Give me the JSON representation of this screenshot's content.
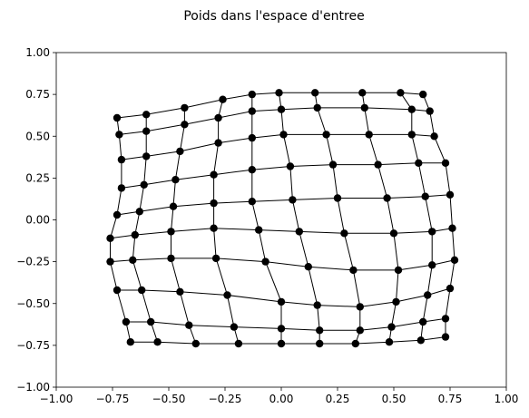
{
  "chart_data": {
    "type": "line",
    "title": "Poids dans l'espace d'entree",
    "xlabel": "",
    "ylabel": "",
    "xlim": [
      -1.0,
      1.0
    ],
    "ylim": [
      -1.0,
      1.0
    ],
    "x_ticks": [
      "−1.00",
      "−0.75",
      "−0.50",
      "−0.25",
      "0.00",
      "0.25",
      "0.50",
      "0.75",
      "1.00"
    ],
    "y_ticks": [
      "1.00",
      "0.75",
      "0.50",
      "0.25",
      "0.00",
      "−0.25",
      "−0.50",
      "−0.75",
      "−1.00"
    ],
    "grid": false,
    "colors": {
      "marker": "#000000",
      "line": "#000000",
      "background": "#ffffff"
    },
    "grid_rows": 10,
    "grid_cols": 10,
    "nodes": [
      [
        [
          -0.73,
          0.61
        ],
        [
          -0.6,
          0.63
        ],
        [
          -0.43,
          0.67
        ],
        [
          -0.26,
          0.72
        ],
        [
          -0.13,
          0.75
        ],
        [
          -0.01,
          0.76
        ],
        [
          0.15,
          0.76
        ],
        [
          0.36,
          0.76
        ],
        [
          0.53,
          0.76
        ],
        [
          0.63,
          0.75
        ]
      ],
      [
        [
          -0.72,
          0.51
        ],
        [
          -0.6,
          0.53
        ],
        [
          -0.43,
          0.57
        ],
        [
          -0.28,
          0.61
        ],
        [
          -0.13,
          0.65
        ],
        [
          0.0,
          0.66
        ],
        [
          0.16,
          0.67
        ],
        [
          0.37,
          0.67
        ],
        [
          0.58,
          0.66
        ],
        [
          0.66,
          0.65
        ]
      ],
      [
        [
          -0.71,
          0.36
        ],
        [
          -0.6,
          0.38
        ],
        [
          -0.45,
          0.41
        ],
        [
          -0.28,
          0.46
        ],
        [
          -0.13,
          0.49
        ],
        [
          0.01,
          0.51
        ],
        [
          0.2,
          0.51
        ],
        [
          0.39,
          0.51
        ],
        [
          0.58,
          0.51
        ],
        [
          0.68,
          0.5
        ]
      ],
      [
        [
          -0.71,
          0.19
        ],
        [
          -0.61,
          0.21
        ],
        [
          -0.47,
          0.24
        ],
        [
          -0.3,
          0.27
        ],
        [
          -0.13,
          0.3
        ],
        [
          0.04,
          0.32
        ],
        [
          0.23,
          0.33
        ],
        [
          0.43,
          0.33
        ],
        [
          0.61,
          0.34
        ],
        [
          0.73,
          0.34
        ]
      ],
      [
        [
          -0.73,
          0.03
        ],
        [
          -0.63,
          0.05
        ],
        [
          -0.48,
          0.08
        ],
        [
          -0.3,
          0.1
        ],
        [
          -0.13,
          0.11
        ],
        [
          0.05,
          0.12
        ],
        [
          0.25,
          0.13
        ],
        [
          0.47,
          0.13
        ],
        [
          0.64,
          0.14
        ],
        [
          0.75,
          0.15
        ]
      ],
      [
        [
          -0.76,
          -0.11
        ],
        [
          -0.65,
          -0.09
        ],
        [
          -0.49,
          -0.07
        ],
        [
          -0.3,
          -0.05
        ],
        [
          -0.1,
          -0.06
        ],
        [
          0.08,
          -0.07
        ],
        [
          0.28,
          -0.08
        ],
        [
          0.5,
          -0.08
        ],
        [
          0.67,
          -0.07
        ],
        [
          0.76,
          -0.05
        ]
      ],
      [
        [
          -0.76,
          -0.25
        ],
        [
          -0.66,
          -0.24
        ],
        [
          -0.49,
          -0.23
        ],
        [
          -0.29,
          -0.23
        ],
        [
          -0.07,
          -0.25
        ],
        [
          0.12,
          -0.28
        ],
        [
          0.32,
          -0.3
        ],
        [
          0.52,
          -0.3
        ],
        [
          0.67,
          -0.27
        ],
        [
          0.77,
          -0.24
        ]
      ],
      [
        [
          -0.73,
          -0.42
        ],
        [
          -0.62,
          -0.42
        ],
        [
          -0.45,
          -0.43
        ],
        [
          -0.24,
          -0.45
        ],
        [
          0.0,
          -0.49
        ],
        [
          0.16,
          -0.51
        ],
        [
          0.35,
          -0.52
        ],
        [
          0.51,
          -0.49
        ],
        [
          0.65,
          -0.45
        ],
        [
          0.75,
          -0.41
        ]
      ],
      [
        [
          -0.69,
          -0.61
        ],
        [
          -0.58,
          -0.61
        ],
        [
          -0.41,
          -0.63
        ],
        [
          -0.21,
          -0.64
        ],
        [
          0.0,
          -0.65
        ],
        [
          0.17,
          -0.66
        ],
        [
          0.35,
          -0.66
        ],
        [
          0.49,
          -0.64
        ],
        [
          0.63,
          -0.61
        ],
        [
          0.73,
          -0.59
        ]
      ],
      [
        [
          -0.67,
          -0.73
        ],
        [
          -0.55,
          -0.73
        ],
        [
          -0.38,
          -0.74
        ],
        [
          -0.19,
          -0.74
        ],
        [
          0.0,
          -0.74
        ],
        [
          0.17,
          -0.74
        ],
        [
          0.33,
          -0.74
        ],
        [
          0.48,
          -0.73
        ],
        [
          0.62,
          -0.72
        ],
        [
          0.73,
          -0.7
        ]
      ]
    ]
  }
}
